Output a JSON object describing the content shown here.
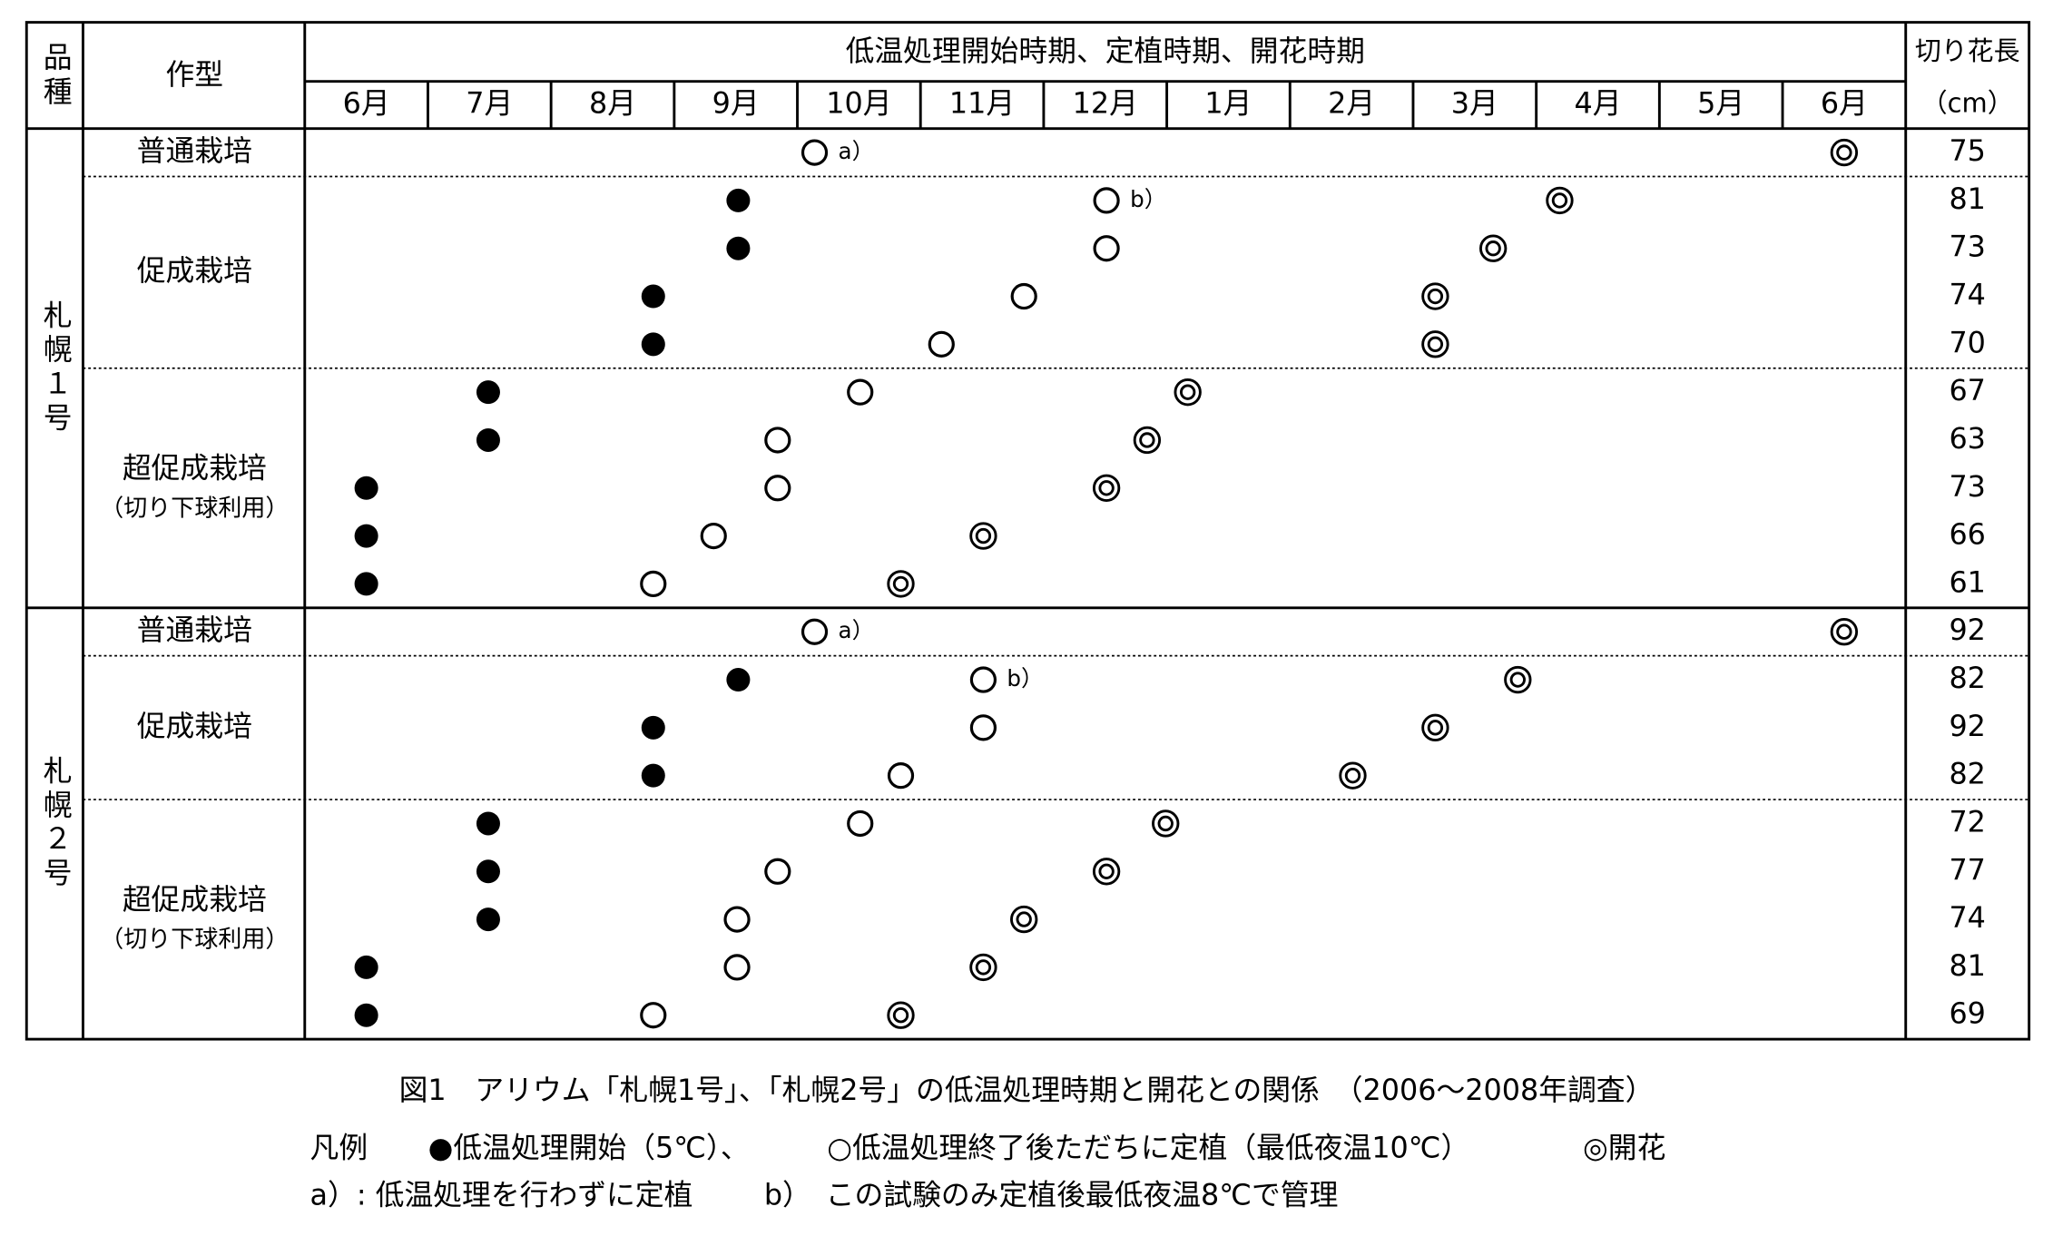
{
  "header": {
    "variety": "品種",
    "cultivation": "作型",
    "period": "低温処理開始時期、定植時期、開花時期",
    "length": "切り花長",
    "length_unit": "（cm）",
    "months": [
      "6月",
      "7月",
      "8月",
      "9月",
      "10月",
      "11月",
      "12月",
      "1月",
      "2月",
      "3月",
      "4月",
      "5月",
      "6月"
    ]
  },
  "groups": [
    {
      "variety": "札幌１号",
      "sections": [
        {
          "label": "普通栽培",
          "rows": [
            {
              "plant": 4.14,
              "note": "a）",
              "bloom": 12.5,
              "length": 75
            }
          ]
        },
        {
          "label": "促成栽培",
          "rows": [
            {
              "start": 3.52,
              "plant": 6.51,
              "note": "b）",
              "bloom": 10.19,
              "length": 81
            },
            {
              "start": 3.52,
              "plant": 6.51,
              "bloom": 9.65,
              "length": 73
            },
            {
              "start": 2.83,
              "plant": 5.84,
              "bloom": 9.18,
              "length": 74
            },
            {
              "start": 2.83,
              "plant": 5.17,
              "bloom": 9.18,
              "length": 70
            }
          ]
        },
        {
          "label": "超促成栽培",
          "sublabel": "（切り下球利用）",
          "rows": [
            {
              "start": 1.49,
              "plant": 4.51,
              "bloom": 7.17,
              "length": 67
            },
            {
              "start": 1.49,
              "plant": 3.84,
              "bloom": 6.84,
              "length": 63
            },
            {
              "start": 0.5,
              "plant": 3.84,
              "bloom": 6.51,
              "length": 73
            },
            {
              "start": 0.5,
              "plant": 3.32,
              "bloom": 5.51,
              "length": 66
            },
            {
              "start": 0.5,
              "plant": 2.83,
              "bloom": 4.84,
              "length": 61
            }
          ]
        }
      ]
    },
    {
      "variety": "札幌２号",
      "sections": [
        {
          "label": "普通栽培",
          "rows": [
            {
              "plant": 4.14,
              "note": "a）",
              "bloom": 12.5,
              "length": 92
            }
          ]
        },
        {
          "label": "促成栽培",
          "rows": [
            {
              "start": 3.52,
              "plant": 5.51,
              "note": "b）",
              "bloom": 9.85,
              "length": 82
            },
            {
              "start": 2.83,
              "plant": 5.51,
              "bloom": 9.18,
              "length": 92
            },
            {
              "start": 2.83,
              "plant": 4.84,
              "bloom": 8.51,
              "length": 82
            }
          ]
        },
        {
          "label": "超促成栽培",
          "sublabel": "（切り下球利用）",
          "rows": [
            {
              "start": 1.49,
              "plant": 4.51,
              "bloom": 6.99,
              "length": 72
            },
            {
              "start": 1.49,
              "plant": 3.84,
              "bloom": 6.51,
              "length": 77
            },
            {
              "start": 1.49,
              "plant": 3.51,
              "bloom": 5.84,
              "length": 74
            },
            {
              "start": 0.5,
              "plant": 3.51,
              "bloom": 5.51,
              "length": 81
            },
            {
              "start": 0.5,
              "plant": 2.83,
              "bloom": 4.84,
              "length": 69
            }
          ]
        }
      ]
    }
  ],
  "caption": "図1　アリウム「札幌1号」、「札幌2号」の低温処理時期と開花との関係　（2006～2008年調査）",
  "legend": {
    "title": "凡例",
    "start": "●低温処理開始（5℃）、",
    "plant": "○低温処理終了後ただちに定植（最低夜温10℃）",
    "bloom": "◎開花"
  },
  "notes": {
    "a": "a）: 低温処理を行わずに定植",
    "b": "b）　この試験のみ定植後最低夜温8℃で管理"
  }
}
